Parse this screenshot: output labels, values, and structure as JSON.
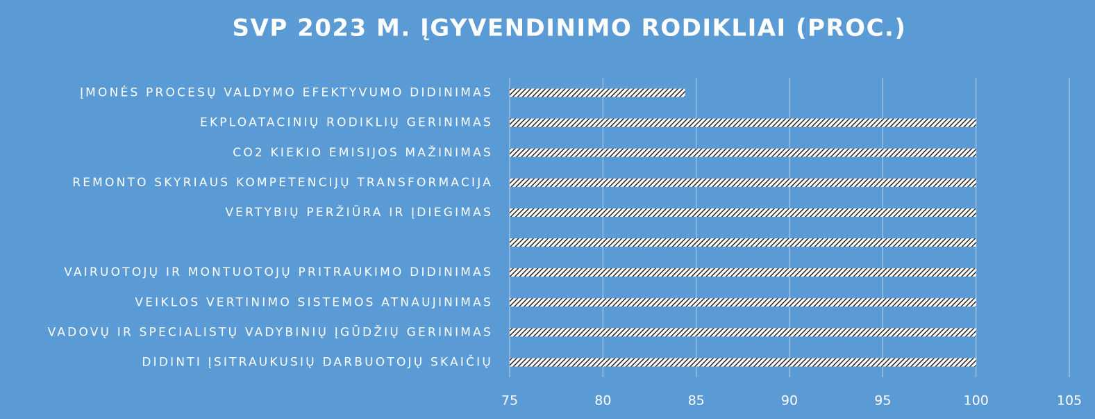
{
  "chart_data": {
    "type": "bar",
    "orientation": "horizontal",
    "title": "SVP 2023 M. ĮGYVENDINIMO RODIKLIAI (PROC.)",
    "categories": [
      "ĮMONĖS PROCESŲ VALDYMO EFEKTYVUMO DIDINIMAS",
      "EKPLOATACINIŲ RODIKLIŲ GERINIMAS",
      "CO2 KIEKIO EMISIJOS MAŽINIMAS",
      "REMONTO SKYRIAUS KOMPETENCIJŲ TRANSFORMACIJA",
      "VERTYBIŲ PERŽIŪRA IR ĮDIEGIMAS",
      null,
      "VAIRUOTOJŲ IR MONTUOTOJŲ PRITRAUKIMO DIDINIMAS",
      "VEIKLOS VERTINIMO SISTEMOS ATNAUJINIMAS",
      "VADOVŲ IR SPECIALISTŲ VADYBINIŲ ĮGŪDŽIŲ GERINIMAS",
      "DIDINTI ĮSITRAUKUSIŲ DARBUOTOJŲ SKAIČIŲ"
    ],
    "values": [
      84.4,
      100,
      100,
      100,
      100,
      100,
      100,
      100,
      100,
      100
    ],
    "color": "#222222",
    "xlim": [
      75,
      105
    ],
    "xticks": [
      75,
      80,
      85,
      90,
      95,
      100,
      105
    ],
    "grid": true
  }
}
